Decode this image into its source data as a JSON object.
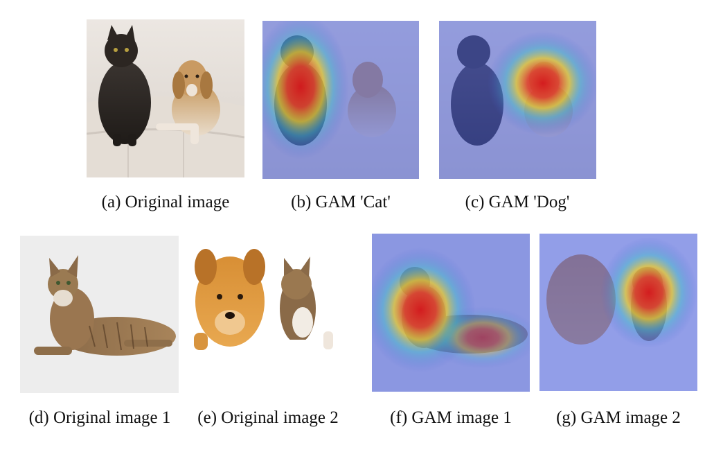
{
  "figure": {
    "captions": {
      "a": "(a) Original image",
      "b": "(b) GAM 'Cat'",
      "c": "(c) GAM 'Dog'",
      "d": "(d) Original image 1",
      "e": "(e) Original image 2",
      "f": "(f) GAM image 1",
      "g": "(g) GAM image 2"
    },
    "colors": {
      "background": "#ffffff",
      "heat_hot": "#e02020",
      "heat_warm": "#f0d020",
      "heat_cool": "#3a8fe0",
      "heat_base": "#4a5ed8"
    }
  }
}
